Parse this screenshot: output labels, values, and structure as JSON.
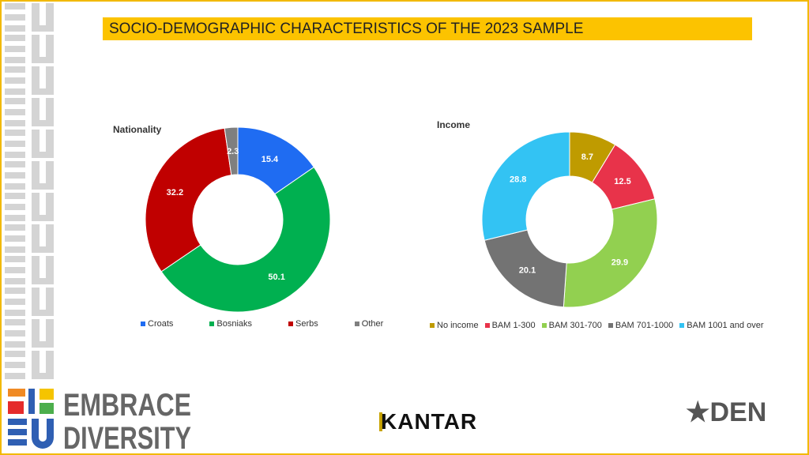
{
  "title": "SOCIO-DEMOGRAPHIC CHARACTERISTICS OF THE 2023 SAMPLE",
  "logos": {
    "left": "EMBRACE DIVERSITY",
    "left_mark": "BiH EU",
    "center": "KANTAR",
    "right": "DEN"
  },
  "chart_data": [
    {
      "type": "pie",
      "title": "Nationality",
      "donut": true,
      "categories": [
        "Croats",
        "Bosniaks",
        "Serbs",
        "Other"
      ],
      "values": [
        15.4,
        50.1,
        32.2,
        2.3
      ],
      "colors": [
        "#1f6cf2",
        "#00b050",
        "#c00000",
        "#7f7f7f"
      ],
      "legend": "bottom"
    },
    {
      "type": "pie",
      "title": "Income",
      "donut": true,
      "categories": [
        "No income",
        "BAM 1-300",
        "BAM 301-700",
        "BAM 701-1000",
        "BAM 1001 and over"
      ],
      "values": [
        8.7,
        12.5,
        29.9,
        20.1,
        28.8
      ],
      "colors": [
        "#bf9b00",
        "#e8334a",
        "#92d050",
        "#737373",
        "#33c3f3"
      ],
      "legend": "bottom"
    }
  ]
}
